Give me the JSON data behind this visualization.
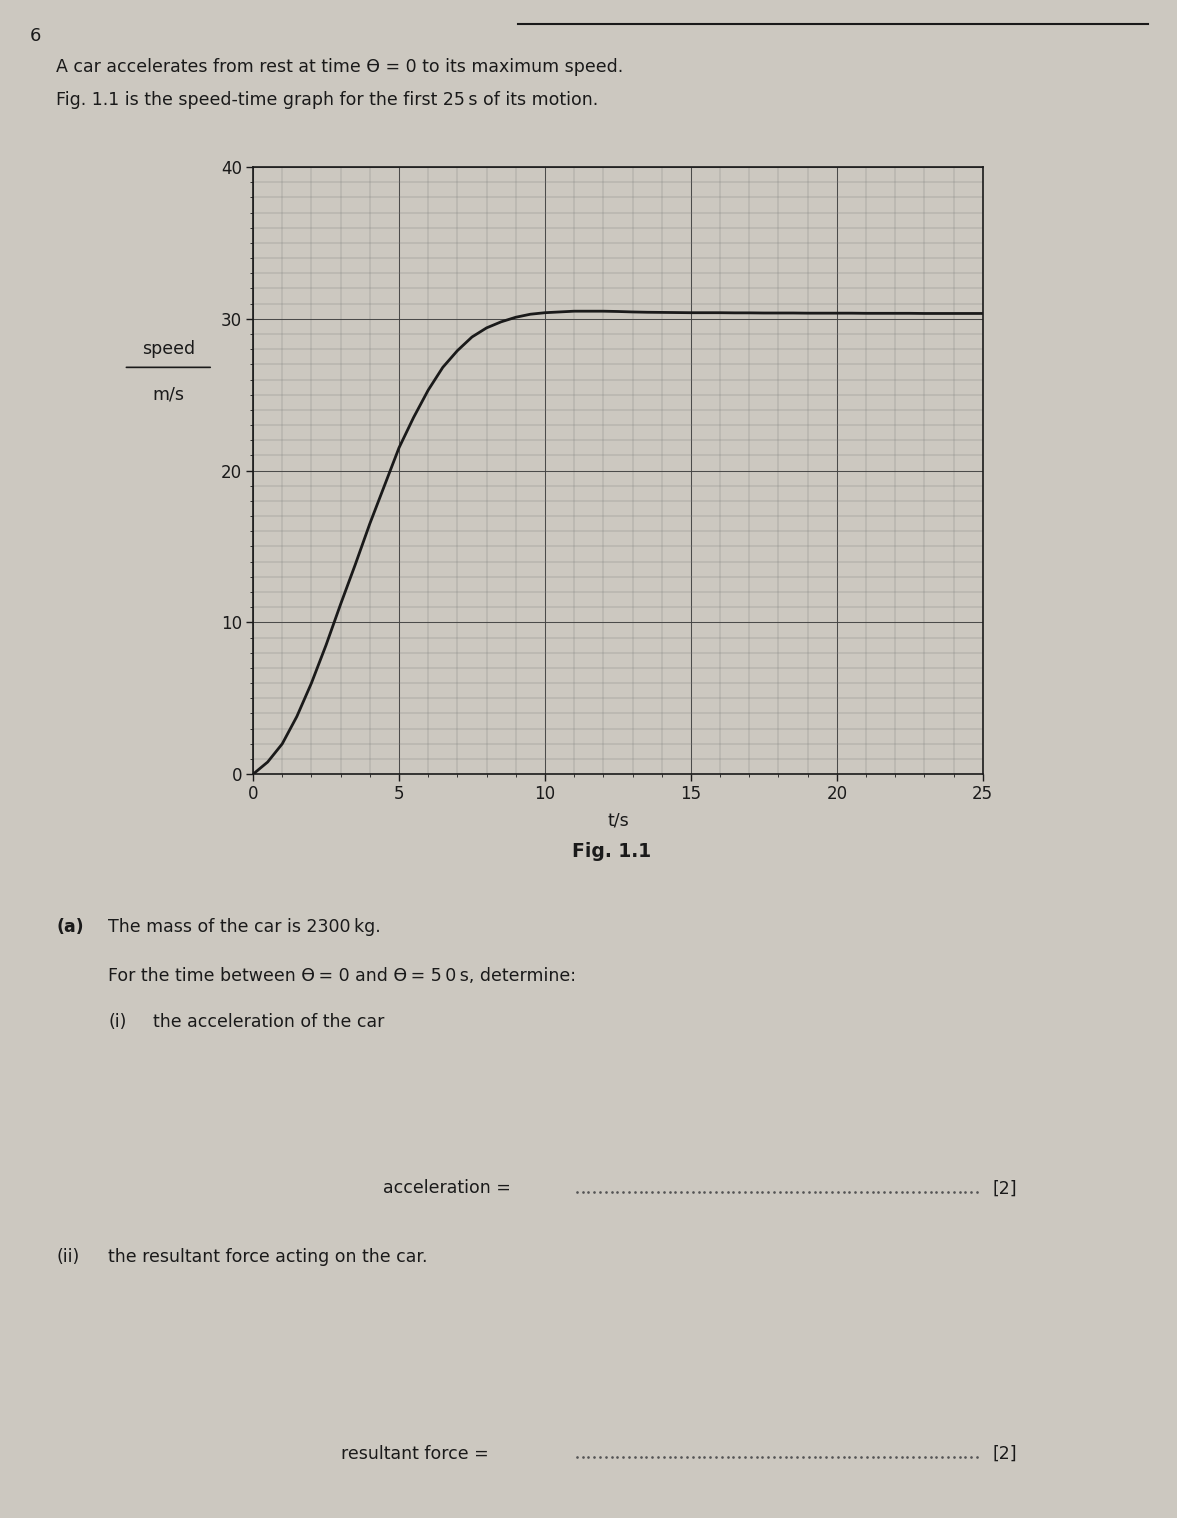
{
  "page_number": "6",
  "bg_color": "#ccc8c0",
  "text_color": "#1a1a1a",
  "graph_ylabel_top": "speed",
  "graph_ylabel_bottom": "m/s",
  "graph_xlabel": "t/s",
  "fig_caption": "Fig. 1.1",
  "x_data": [
    0,
    0.5,
    1,
    1.5,
    2,
    2.5,
    3,
    3.5,
    4,
    4.5,
    5,
    5.5,
    6,
    6.5,
    7,
    7.5,
    8,
    8.5,
    9,
    9.5,
    10,
    10.5,
    11,
    11.5,
    12,
    12.5,
    13,
    13.5,
    14,
    14.5,
    15,
    15.5,
    16,
    16.5,
    17,
    17.5,
    18,
    18.5,
    19,
    19.5,
    20,
    20.5,
    21,
    21.5,
    22,
    22.5,
    23,
    23.5,
    24,
    24.5,
    25
  ],
  "y_data": [
    0,
    0.8,
    2.0,
    3.8,
    6.0,
    8.5,
    11.2,
    13.8,
    16.5,
    19.0,
    21.5,
    23.5,
    25.3,
    26.8,
    27.9,
    28.8,
    29.4,
    29.8,
    30.1,
    30.3,
    30.4,
    30.45,
    30.5,
    30.5,
    30.5,
    30.48,
    30.45,
    30.43,
    30.42,
    30.41,
    30.4,
    30.4,
    30.4,
    30.39,
    30.39,
    30.38,
    30.38,
    30.38,
    30.37,
    30.37,
    30.37,
    30.37,
    30.36,
    30.36,
    30.36,
    30.36,
    30.35,
    30.35,
    30.35,
    30.35,
    30.35
  ],
  "xlim": [
    0,
    25
  ],
  "ylim": [
    0,
    40
  ],
  "xticks": [
    0,
    5,
    10,
    15,
    20,
    25
  ],
  "yticks": [
    0,
    10,
    20,
    30,
    40
  ],
  "grid_major_color": "#444444",
  "grid_minor_color": "#777777",
  "curve_color": "#1a1a1a",
  "curve_linewidth": 2.0,
  "dotted_line_color": "#555555",
  "part_a_bold": "(a)",
  "part_a_text": "The mass of the car is 2300 kg.",
  "for_time_text": "For the time between t = 0 and t = 5 0 s, determine:",
  "part_i_label": "(i)",
  "part_i_text": "the acceleration of the car",
  "accel_label": "acceleration = ",
  "accel_mark": "[2]",
  "part_ii_label": "(ii)",
  "part_ii_text": "the resultant force acting on the car.",
  "force_label": "resultant force = ",
  "force_mark": "[2]"
}
